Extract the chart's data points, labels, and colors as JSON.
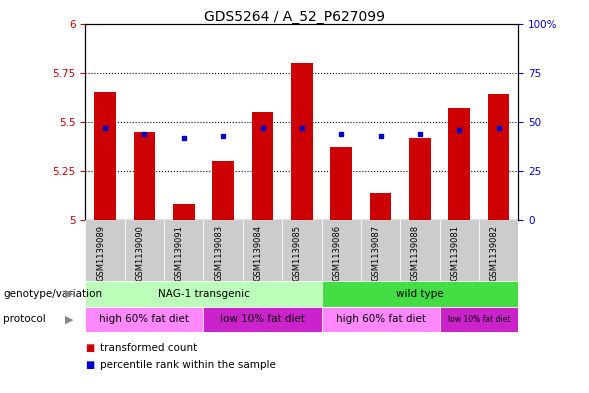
{
  "title": "GDS5264 / A_52_P627099",
  "samples": [
    "GSM1139089",
    "GSM1139090",
    "GSM1139091",
    "GSM1139083",
    "GSM1139084",
    "GSM1139085",
    "GSM1139086",
    "GSM1139087",
    "GSM1139088",
    "GSM1139081",
    "GSM1139082"
  ],
  "red_values": [
    5.65,
    5.45,
    5.08,
    5.3,
    5.55,
    5.8,
    5.37,
    5.14,
    5.42,
    5.57,
    5.64
  ],
  "blue_values": [
    47,
    44,
    42,
    43,
    47,
    47,
    44,
    43,
    44,
    46,
    47
  ],
  "ylim_left": [
    5.0,
    6.0
  ],
  "ylim_right": [
    0,
    100
  ],
  "yticks_left": [
    5.0,
    5.25,
    5.5,
    5.75,
    6.0
  ],
  "yticks_right": [
    0,
    25,
    50,
    75,
    100
  ],
  "left_tick_labels": [
    "5",
    "5.25",
    "5.5",
    "5.75",
    "6"
  ],
  "right_tick_labels": [
    "0",
    "25",
    "50",
    "75",
    "100%"
  ],
  "bar_color": "#cc0000",
  "dot_color": "#0000cc",
  "xticklabel_bg": "#cccccc",
  "genotype_label": "genotype/variation",
  "protocol_label": "protocol",
  "genotype_groups": [
    {
      "label": "NAG-1 transgenic",
      "start": 0,
      "end": 5,
      "color": "#bbffbb"
    },
    {
      "label": "wild type",
      "start": 6,
      "end": 10,
      "color": "#44dd44"
    }
  ],
  "protocol_groups": [
    {
      "label": "high 60% fat diet",
      "start": 0,
      "end": 2,
      "color": "#ff88ff"
    },
    {
      "label": "low 10% fat diet",
      "start": 3,
      "end": 5,
      "color": "#cc22cc"
    },
    {
      "label": "high 60% fat diet",
      "start": 6,
      "end": 8,
      "color": "#ff88ff"
    },
    {
      "label": "low 10% fat diet",
      "start": 9,
      "end": 10,
      "color": "#cc22cc"
    }
  ],
  "legend_red_label": "transformed count",
  "legend_blue_label": "percentile rank within the sample",
  "title_fontsize": 10,
  "tick_fontsize": 7.5,
  "sample_fontsize": 6,
  "annot_fontsize": 7.5,
  "legend_fontsize": 7.5
}
